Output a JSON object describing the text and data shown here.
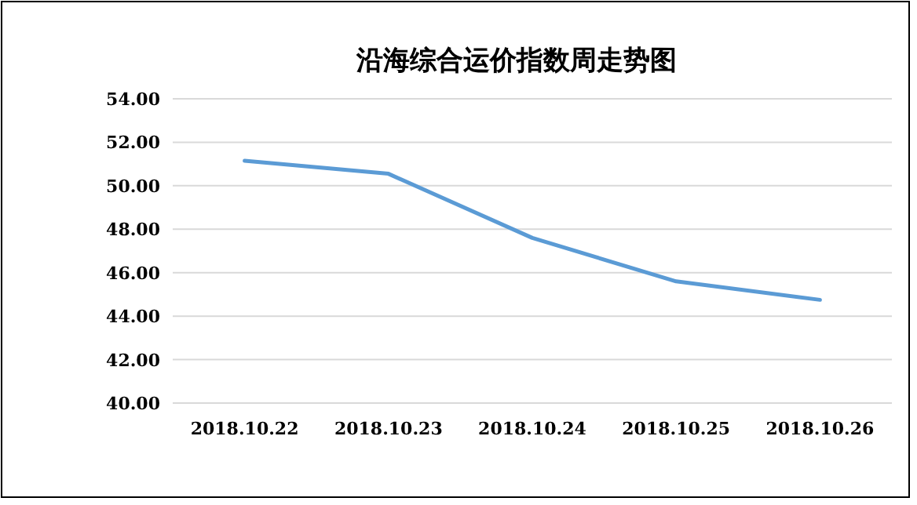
{
  "chart_data": {
    "type": "line",
    "title": "沿海综合运价指数周走势图",
    "categories": [
      "2018.10.22",
      "2018.10.23",
      "2018.10.24",
      "2018.10.25",
      "2018.10.26"
    ],
    "series": [
      {
        "color": "#5b9bd5",
        "values": [
          51.15,
          50.55,
          47.6,
          45.6,
          44.75
        ]
      }
    ],
    "ylim": [
      40,
      54
    ],
    "yticks": [
      {
        "value": 40,
        "label": "40.00"
      },
      {
        "value": 42,
        "label": "42.00"
      },
      {
        "value": 44,
        "label": "44.00"
      },
      {
        "value": 46,
        "label": "46.00"
      },
      {
        "value": 48,
        "label": "48.00"
      },
      {
        "value": 50,
        "label": "50.00"
      },
      {
        "value": 52,
        "label": "52.00"
      },
      {
        "value": 54,
        "label": "54.00"
      }
    ],
    "grid": "y",
    "marker": "none",
    "line_style": "solid"
  }
}
